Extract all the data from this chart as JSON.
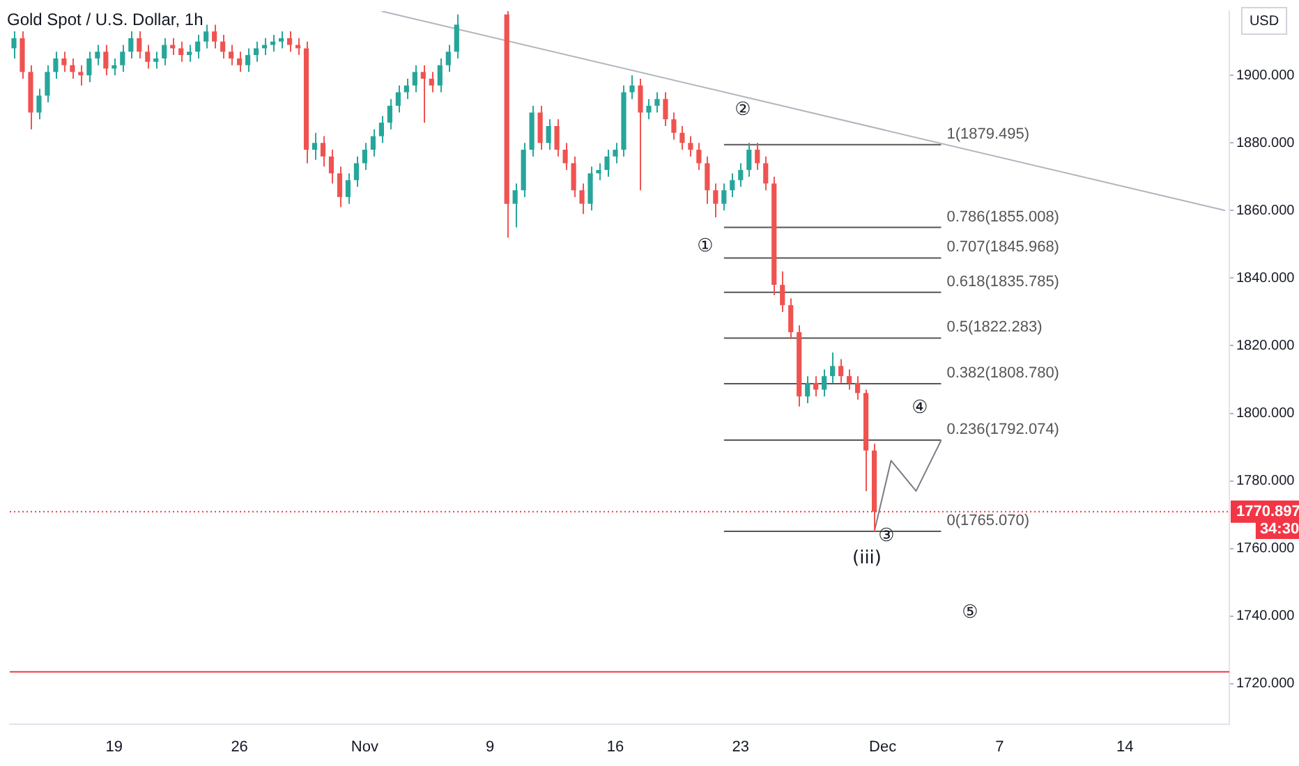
{
  "chart_data": {
    "type": "candlestick",
    "title": "Gold Spot / U.S. Dollar, 1h",
    "categories": [
      null,
      null,
      null,
      null,
      null,
      null,
      null,
      null,
      null,
      null,
      null,
      null,
      "19",
      null,
      null,
      null,
      null,
      null,
      null,
      null,
      null,
      null,
      null,
      null,
      null,
      null,
      null,
      "26",
      null,
      null,
      null,
      null,
      null,
      null,
      null,
      null,
      null,
      null,
      null,
      null,
      null,
      null,
      "Nov",
      null,
      null,
      null,
      null,
      null,
      null,
      null,
      null,
      null,
      null,
      null,
      null,
      null,
      null,
      "9",
      null,
      null,
      null,
      null,
      null,
      null,
      null,
      null,
      null,
      null,
      null,
      null,
      null,
      null,
      "16",
      null,
      null,
      null,
      null,
      null,
      null,
      null,
      null,
      null,
      null,
      null,
      null,
      null,
      null,
      "23",
      null,
      null,
      null,
      null,
      null,
      null,
      null,
      null,
      null,
      null,
      null,
      null,
      null,
      null,
      null,
      null,
      "Dec",
      null,
      null,
      null,
      null,
      null,
      null,
      null,
      null,
      null,
      null,
      null,
      null,
      null,
      "7",
      null,
      null,
      null,
      null,
      null,
      null,
      null,
      null,
      null,
      null,
      null,
      null,
      null,
      null,
      "14",
      null,
      null,
      null,
      null,
      null,
      null,
      null,
      null,
      null,
      null,
      null,
      null
    ],
    "ohlc": [
      [
        1908,
        1913,
        1905,
        1911
      ],
      [
        1911,
        1913,
        1899,
        1901
      ],
      [
        1901,
        1903,
        1884,
        1889
      ],
      [
        1889,
        1896,
        1887,
        1894
      ],
      [
        1894,
        1903,
        1892,
        1901
      ],
      [
        1901,
        1907,
        1899,
        1905
      ],
      [
        1905,
        1907,
        1901,
        1903
      ],
      [
        1903,
        1905,
        1899,
        1901
      ],
      [
        1901,
        1903,
        1897,
        1900
      ],
      [
        1900,
        1907,
        1898,
        1905
      ],
      [
        1905,
        1909,
        1903,
        1907
      ],
      [
        1907,
        1909,
        1900,
        1902
      ],
      [
        1902,
        1905,
        1900,
        1903
      ],
      [
        1903,
        1909,
        1901,
        1907
      ],
      [
        1907,
        1913,
        1905,
        1911
      ],
      [
        1911,
        1913,
        1905,
        1907
      ],
      [
        1907,
        1909,
        1902,
        1904
      ],
      [
        1904,
        1907,
        1902,
        1905
      ],
      [
        1905,
        1911,
        1903,
        1909
      ],
      [
        1909,
        1911,
        1906,
        1908
      ],
      [
        1908,
        1910,
        1904,
        1906
      ],
      [
        1906,
        1909,
        1904,
        1907
      ],
      [
        1907,
        1912,
        1905,
        1910
      ],
      [
        1910,
        1915,
        1908,
        1913
      ],
      [
        1913,
        1915,
        1908,
        1910
      ],
      [
        1910,
        1912,
        1905,
        1907
      ],
      [
        1907,
        1909,
        1903,
        1905
      ],
      [
        1905,
        1907,
        1901,
        1903
      ],
      [
        1903,
        1908,
        1901,
        1906
      ],
      [
        1906,
        1910,
        1904,
        1908
      ],
      [
        1908,
        1911,
        1906,
        1909
      ],
      [
        1909,
        1912,
        1907,
        1910
      ],
      [
        1910,
        1913,
        1908,
        1911
      ],
      [
        1911,
        1913,
        1907,
        1909
      ],
      [
        1909,
        1911,
        1906,
        1908
      ],
      [
        1908,
        1910,
        1874,
        1878
      ],
      [
        1878,
        1883,
        1875,
        1880
      ],
      [
        1880,
        1882,
        1873,
        1876
      ],
      [
        1876,
        1878,
        1868,
        1871
      ],
      [
        1871,
        1873,
        1861,
        1864
      ],
      [
        1864,
        1871,
        1862,
        1869
      ],
      [
        1869,
        1876,
        1867,
        1874
      ],
      [
        1874,
        1880,
        1872,
        1878
      ],
      [
        1878,
        1884,
        1876,
        1882
      ],
      [
        1882,
        1888,
        1880,
        1886
      ],
      [
        1886,
        1893,
        1884,
        1891
      ],
      [
        1891,
        1897,
        1889,
        1895
      ],
      [
        1895,
        1899,
        1893,
        1897
      ],
      [
        1897,
        1903,
        1895,
        1901
      ],
      [
        1901,
        1903,
        1886,
        1899
      ],
      [
        1899,
        1901,
        1895,
        1897
      ],
      [
        1897,
        1905,
        1895,
        1903
      ],
      [
        1903,
        1909,
        1901,
        1907
      ],
      [
        1907,
        1918,
        1905,
        1915
      ],
      null,
      null,
      null,
      null,
      null,
      [
        1918,
        1919,
        1852,
        1862
      ],
      [
        1862,
        1868,
        1855,
        1866
      ],
      [
        1866,
        1880,
        1864,
        1878
      ],
      [
        1878,
        1891,
        1876,
        1889
      ],
      [
        1889,
        1891,
        1878,
        1880
      ],
      [
        1880,
        1887,
        1878,
        1885
      ],
      [
        1885,
        1887,
        1876,
        1878
      ],
      [
        1878,
        1880,
        1872,
        1874
      ],
      [
        1874,
        1876,
        1864,
        1866
      ],
      [
        1866,
        1868,
        1859,
        1862
      ],
      [
        1862,
        1873,
        1860,
        1871
      ],
      [
        1871,
        1874,
        1869,
        1872
      ],
      [
        1872,
        1878,
        1870,
        1876
      ],
      [
        1876,
        1880,
        1874,
        1878
      ],
      [
        1878,
        1897,
        1876,
        1895
      ],
      [
        1895,
        1900,
        1893,
        1897
      ],
      [
        1897,
        1899,
        1866,
        1889
      ],
      [
        1889,
        1893,
        1887,
        1891
      ],
      [
        1891,
        1895,
        1889,
        1893
      ],
      [
        1893,
        1895,
        1885,
        1887
      ],
      [
        1887,
        1889,
        1881,
        1883
      ],
      [
        1883,
        1885,
        1878,
        1880
      ],
      [
        1880,
        1882,
        1876,
        1878
      ],
      [
        1878,
        1880,
        1872,
        1874
      ],
      [
        1874,
        1876,
        1862,
        1866
      ],
      [
        1866,
        1868,
        1858,
        1862
      ],
      [
        1862,
        1868,
        1860,
        1866
      ],
      [
        1866,
        1871,
        1864,
        1869
      ],
      [
        1869,
        1874,
        1867,
        1872
      ],
      [
        1872,
        1880,
        1870,
        1878
      ],
      [
        1878,
        1880,
        1872,
        1874
      ],
      [
        1874,
        1876,
        1866,
        1868
      ],
      [
        1868,
        1870,
        1835,
        1838
      ],
      [
        1838,
        1842,
        1830,
        1832
      ],
      [
        1832,
        1834,
        1822,
        1824
      ],
      [
        1824,
        1826,
        1802,
        1805
      ],
      [
        1805,
        1811,
        1803,
        1809
      ],
      [
        1809,
        1811,
        1805,
        1807
      ],
      [
        1807,
        1813,
        1805,
        1811
      ],
      [
        1811,
        1818,
        1809,
        1814
      ],
      [
        1814,
        1816,
        1809,
        1811
      ],
      [
        1811,
        1813,
        1807,
        1809
      ],
      [
        1809,
        1811,
        1804,
        1806
      ],
      [
        1806,
        1807,
        1777,
        1789
      ],
      [
        1789,
        1791,
        1765,
        1770.897
      ],
      null,
      null,
      null,
      null,
      null,
      null,
      null,
      null,
      null,
      null,
      null,
      null,
      null,
      null,
      null,
      null,
      null,
      null,
      null,
      null,
      null,
      null,
      null,
      null,
      null,
      null,
      null,
      null,
      null,
      null,
      null,
      null,
      null,
      null,
      null,
      null,
      null,
      null,
      null,
      null,
      null,
      null
    ],
    "colors": [
      "#26a69a",
      "#ef5350",
      "#ef5350",
      "#26a69a",
      "#26a69a",
      "#26a69a",
      "#ef5350",
      "#ef5350",
      "#ef5350",
      "#26a69a",
      "#26a69a",
      "#ef5350",
      "#26a69a",
      "#26a69a",
      "#26a69a",
      "#ef5350",
      "#ef5350",
      "#26a69a",
      "#26a69a",
      "#ef5350",
      "#ef5350",
      "#26a69a",
      "#26a69a",
      "#26a69a",
      "#ef5350",
      "#ef5350",
      "#ef5350",
      "#ef5350",
      "#26a69a",
      "#26a69a",
      "#26a69a",
      "#26a69a",
      "#26a69a",
      "#ef5350",
      "#ef5350",
      "#ef5350",
      "#26a69a",
      "#ef5350",
      "#ef5350",
      "#ef5350",
      "#26a69a",
      "#26a69a",
      "#26a69a",
      "#26a69a",
      "#26a69a",
      "#26a69a",
      "#26a69a",
      "#26a69a",
      "#26a69a",
      "#ef5350",
      "#ef5350",
      "#26a69a",
      "#26a69a",
      "#26a69a",
      null,
      null,
      null,
      null,
      null,
      "#ef5350",
      "#26a69a",
      "#26a69a",
      "#26a69a",
      "#ef5350",
      "#26a69a",
      "#ef5350",
      "#ef5350",
      "#ef5350",
      "#ef5350",
      "#26a69a",
      "#26a69a",
      "#26a69a",
      "#26a69a",
      "#26a69a",
      "#26a69a",
      "#ef5350",
      "#26a69a",
      "#26a69a",
      "#ef5350",
      "#ef5350",
      "#ef5350",
      "#ef5350",
      "#ef5350",
      "#ef5350",
      "#ef5350",
      "#26a69a",
      "#26a69a",
      "#26a69a",
      "#26a69a",
      "#ef5350",
      "#ef5350",
      "#ef5350",
      "#ef5350",
      "#ef5350",
      "#ef5350",
      "#26a69a",
      "#ef5350",
      "#26a69a",
      "#26a69a",
      "#ef5350",
      "#ef5350",
      "#ef5350",
      "#ef5350",
      "#ef5350",
      null,
      null,
      null,
      null,
      null,
      null,
      null,
      null,
      null,
      null,
      null,
      null,
      null,
      null,
      null,
      null,
      null,
      null,
      null,
      null,
      null,
      null,
      null,
      null,
      null,
      null,
      null,
      null,
      null,
      null,
      null,
      null,
      null,
      null,
      null,
      null,
      null,
      null,
      null,
      null,
      null,
      null
    ],
    "ylim": [
      1708,
      1919
    ],
    "yticks": [
      {
        "value": 1720,
        "label": "1720.000"
      },
      {
        "value": 1740,
        "label": "1740.000"
      },
      {
        "value": 1760,
        "label": "1760.000"
      },
      {
        "value": 1780,
        "label": "1780.000"
      },
      {
        "value": 1800,
        "label": "1800.000"
      },
      {
        "value": 1820,
        "label": "1820.000"
      },
      {
        "value": 1840,
        "label": "1840.000"
      },
      {
        "value": 1860,
        "label": "1860.000"
      },
      {
        "value": 1880,
        "label": "1880.000"
      },
      {
        "value": 1900,
        "label": "1900.000"
      }
    ],
    "series": [
      {
        "type": "line",
        "color": "#b2b5be",
        "values": [
          null,
          null,
          null,
          null,
          null,
          null,
          null,
          null,
          null,
          null,
          null,
          null,
          null,
          null,
          null,
          null,
          null,
          null,
          null,
          null,
          null,
          null,
          null,
          null,
          null,
          null,
          null,
          null,
          null,
          null,
          null,
          null,
          null,
          null,
          null,
          null,
          null,
          null,
          null,
          null,
          null,
          null,
          null,
          null,
          1919,
          null,
          null,
          null,
          null,
          null,
          null,
          null,
          null,
          null,
          null,
          null,
          null,
          null,
          null,
          null,
          null,
          null,
          null,
          null,
          null,
          null,
          null,
          null,
          null,
          null,
          null,
          null,
          null,
          null,
          null,
          null,
          null,
          null,
          null,
          null,
          null,
          null,
          null,
          null,
          null,
          null,
          null,
          null,
          null,
          null,
          null,
          null,
          null,
          null,
          null,
          null,
          null,
          null,
          null,
          null,
          null,
          null,
          null,
          null,
          null,
          null,
          null,
          null,
          null,
          null,
          null,
          null,
          null,
          null,
          null,
          null,
          null,
          null,
          null,
          null,
          null,
          null,
          null,
          null,
          null,
          null,
          null,
          null,
          null,
          null,
          null,
          null,
          null,
          null,
          null,
          null,
          null,
          null,
          null,
          null,
          null,
          null,
          null,
          null,
          null,
          1860
        ]
      },
      {
        "type": "line",
        "color": "#787b86",
        "values": [
          null,
          null,
          null,
          null,
          null,
          null,
          null,
          null,
          null,
          null,
          null,
          null,
          null,
          null,
          null,
          null,
          null,
          null,
          null,
          null,
          null,
          null,
          null,
          null,
          null,
          null,
          null,
          null,
          null,
          null,
          null,
          null,
          null,
          null,
          null,
          null,
          null,
          null,
          null,
          null,
          null,
          null,
          null,
          null,
          null,
          null,
          null,
          null,
          null,
          null,
          null,
          null,
          null,
          null,
          null,
          null,
          null,
          null,
          null,
          null,
          null,
          null,
          null,
          null,
          null,
          null,
          null,
          null,
          null,
          null,
          null,
          null,
          null,
          null,
          null,
          null,
          null,
          null,
          null,
          null,
          null,
          null,
          null,
          null,
          null,
          null,
          null,
          null,
          null,
          null,
          null,
          null,
          null,
          null,
          null,
          null,
          null,
          null,
          null,
          null,
          null,
          null,
          null,
          1765,
          null,
          1786,
          null,
          null,
          1777,
          null,
          null,
          1792,
          null,
          null,
          null,
          null,
          null,
          null,
          null,
          null,
          null,
          null,
          null,
          null,
          null,
          null,
          null,
          null,
          null,
          null,
          null,
          null,
          null,
          null,
          null,
          null,
          null,
          null,
          null,
          null,
          null,
          null,
          null,
          null,
          null,
          null
        ]
      },
      {
        "type": "line",
        "name": "1(1879.495)",
        "color": "#555555",
        "values": [
          null,
          null,
          null,
          null,
          null,
          null,
          null,
          null,
          null,
          null,
          null,
          null,
          null,
          null,
          null,
          null,
          null,
          null,
          null,
          null,
          null,
          null,
          null,
          null,
          null,
          null,
          null,
          null,
          null,
          null,
          null,
          null,
          null,
          null,
          null,
          null,
          null,
          null,
          null,
          null,
          null,
          null,
          null,
          null,
          null,
          null,
          null,
          null,
          null,
          null,
          null,
          null,
          null,
          null,
          null,
          null,
          null,
          null,
          null,
          null,
          null,
          null,
          null,
          null,
          null,
          null,
          null,
          null,
          null,
          null,
          null,
          null,
          null,
          null,
          null,
          null,
          null,
          null,
          null,
          null,
          null,
          null,
          null,
          null,
          null,
          1879.495,
          1879.495,
          1879.495,
          1879.495,
          1879.495,
          1879.495,
          1879.495,
          1879.495,
          1879.495,
          1879.495,
          1879.495,
          1879.495,
          1879.495,
          1879.495,
          1879.495,
          1879.495,
          1879.495,
          1879.495,
          1879.495,
          1879.495,
          1879.495,
          1879.495,
          1879.495,
          1879.495,
          1879.495,
          1879.495,
          1879.495,
          null,
          null,
          null,
          null,
          null,
          null,
          null,
          null,
          null,
          null,
          null,
          null,
          null,
          null,
          null,
          null,
          null,
          null,
          null,
          null,
          null,
          null,
          null,
          null,
          null,
          null,
          null,
          null,
          null,
          null,
          null,
          null,
          null,
          null
        ]
      },
      {
        "type": "line",
        "name": "0.786(1855.008)",
        "color": "#555555",
        "values": [
          null,
          null,
          null,
          null,
          null,
          null,
          null,
          null,
          null,
          null,
          null,
          null,
          null,
          null,
          null,
          null,
          null,
          null,
          null,
          null,
          null,
          null,
          null,
          null,
          null,
          null,
          null,
          null,
          null,
          null,
          null,
          null,
          null,
          null,
          null,
          null,
          null,
          null,
          null,
          null,
          null,
          null,
          null,
          null,
          null,
          null,
          null,
          null,
          null,
          null,
          null,
          null,
          null,
          null,
          null,
          null,
          null,
          null,
          null,
          null,
          null,
          null,
          null,
          null,
          null,
          null,
          null,
          null,
          null,
          null,
          null,
          null,
          null,
          null,
          null,
          null,
          null,
          null,
          null,
          null,
          null,
          null,
          null,
          null,
          null,
          1855.008,
          1855.008,
          1855.008,
          1855.008,
          1855.008,
          1855.008,
          1855.008,
          1855.008,
          1855.008,
          1855.008,
          1855.008,
          1855.008,
          1855.008,
          1855.008,
          1855.008,
          1855.008,
          1855.008,
          1855.008,
          1855.008,
          1855.008,
          1855.008,
          1855.008,
          1855.008,
          1855.008,
          1855.008,
          1855.008,
          1855.008,
          null,
          null,
          null,
          null,
          null,
          null,
          null,
          null,
          null,
          null,
          null,
          null,
          null,
          null,
          null,
          null,
          null,
          null,
          null,
          null,
          null,
          null,
          null,
          null,
          null,
          null,
          null,
          null,
          null,
          null,
          null,
          null,
          null,
          null
        ]
      },
      {
        "type": "line",
        "name": "0.707(1845.968)",
        "color": "#555555",
        "values": [
          null,
          null,
          null,
          null,
          null,
          null,
          null,
          null,
          null,
          null,
          null,
          null,
          null,
          null,
          null,
          null,
          null,
          null,
          null,
          null,
          null,
          null,
          null,
          null,
          null,
          null,
          null,
          null,
          null,
          null,
          null,
          null,
          null,
          null,
          null,
          null,
          null,
          null,
          null,
          null,
          null,
          null,
          null,
          null,
          null,
          null,
          null,
          null,
          null,
          null,
          null,
          null,
          null,
          null,
          null,
          null,
          null,
          null,
          null,
          null,
          null,
          null,
          null,
          null,
          null,
          null,
          null,
          null,
          null,
          null,
          null,
          null,
          null,
          null,
          null,
          null,
          null,
          null,
          null,
          null,
          null,
          null,
          null,
          null,
          null,
          1845.968,
          1845.968,
          1845.968,
          1845.968,
          1845.968,
          1845.968,
          1845.968,
          1845.968,
          1845.968,
          1845.968,
          1845.968,
          1845.968,
          1845.968,
          1845.968,
          1845.968,
          1845.968,
          1845.968,
          1845.968,
          1845.968,
          1845.968,
          1845.968,
          1845.968,
          1845.968,
          1845.968,
          1845.968,
          1845.968,
          1845.968,
          null,
          null,
          null,
          null,
          null,
          null,
          null,
          null,
          null,
          null,
          null,
          null,
          null,
          null,
          null,
          null,
          null,
          null,
          null,
          null,
          null,
          null,
          null,
          null,
          null,
          null,
          null,
          null,
          null,
          null,
          null,
          null,
          null,
          null
        ]
      },
      {
        "type": "line",
        "name": "0.618(1835.785)",
        "color": "#555555",
        "values": [
          null,
          null,
          null,
          null,
          null,
          null,
          null,
          null,
          null,
          null,
          null,
          null,
          null,
          null,
          null,
          null,
          null,
          null,
          null,
          null,
          null,
          null,
          null,
          null,
          null,
          null,
          null,
          null,
          null,
          null,
          null,
          null,
          null,
          null,
          null,
          null,
          null,
          null,
          null,
          null,
          null,
          null,
          null,
          null,
          null,
          null,
          null,
          null,
          null,
          null,
          null,
          null,
          null,
          null,
          null,
          null,
          null,
          null,
          null,
          null,
          null,
          null,
          null,
          null,
          null,
          null,
          null,
          null,
          null,
          null,
          null,
          null,
          null,
          null,
          null,
          null,
          null,
          null,
          null,
          null,
          null,
          null,
          null,
          null,
          null,
          1835.785,
          1835.785,
          1835.785,
          1835.785,
          1835.785,
          1835.785,
          1835.785,
          1835.785,
          1835.785,
          1835.785,
          1835.785,
          1835.785,
          1835.785,
          1835.785,
          1835.785,
          1835.785,
          1835.785,
          1835.785,
          1835.785,
          1835.785,
          1835.785,
          1835.785,
          1835.785,
          1835.785,
          1835.785,
          1835.785,
          1835.785,
          null,
          null,
          null,
          null,
          null,
          null,
          null,
          null,
          null,
          null,
          null,
          null,
          null,
          null,
          null,
          null,
          null,
          null,
          null,
          null,
          null,
          null,
          null,
          null,
          null,
          null,
          null,
          null,
          null,
          null,
          null,
          null,
          null,
          null
        ]
      },
      {
        "type": "line",
        "name": "0.5(1822.283)",
        "color": "#555555",
        "values": [
          null,
          null,
          null,
          null,
          null,
          null,
          null,
          null,
          null,
          null,
          null,
          null,
          null,
          null,
          null,
          null,
          null,
          null,
          null,
          null,
          null,
          null,
          null,
          null,
          null,
          null,
          null,
          null,
          null,
          null,
          null,
          null,
          null,
          null,
          null,
          null,
          null,
          null,
          null,
          null,
          null,
          null,
          null,
          null,
          null,
          null,
          null,
          null,
          null,
          null,
          null,
          null,
          null,
          null,
          null,
          null,
          null,
          null,
          null,
          null,
          null,
          null,
          null,
          null,
          null,
          null,
          null,
          null,
          null,
          null,
          null,
          null,
          null,
          null,
          null,
          null,
          null,
          null,
          null,
          null,
          null,
          null,
          null,
          null,
          null,
          1822.283,
          1822.283,
          1822.283,
          1822.283,
          1822.283,
          1822.283,
          1822.283,
          1822.283,
          1822.283,
          1822.283,
          1822.283,
          1822.283,
          1822.283,
          1822.283,
          1822.283,
          1822.283,
          1822.283,
          1822.283,
          1822.283,
          1822.283,
          1822.283,
          1822.283,
          1822.283,
          1822.283,
          1822.283,
          1822.283,
          1822.283,
          null,
          null,
          null,
          null,
          null,
          null,
          null,
          null,
          null,
          null,
          null,
          null,
          null,
          null,
          null,
          null,
          null,
          null,
          null,
          null,
          null,
          null,
          null,
          null,
          null,
          null,
          null,
          null,
          null,
          null,
          null,
          null,
          null,
          null
        ]
      },
      {
        "type": "line",
        "name": "0.382(1808.780)",
        "color": "#555555",
        "values": [
          null,
          null,
          null,
          null,
          null,
          null,
          null,
          null,
          null,
          null,
          null,
          null,
          null,
          null,
          null,
          null,
          null,
          null,
          null,
          null,
          null,
          null,
          null,
          null,
          null,
          null,
          null,
          null,
          null,
          null,
          null,
          null,
          null,
          null,
          null,
          null,
          null,
          null,
          null,
          null,
          null,
          null,
          null,
          null,
          null,
          null,
          null,
          null,
          null,
          null,
          null,
          null,
          null,
          null,
          null,
          null,
          null,
          null,
          null,
          null,
          null,
          null,
          null,
          null,
          null,
          null,
          null,
          null,
          null,
          null,
          null,
          null,
          null,
          null,
          null,
          null,
          null,
          null,
          null,
          null,
          null,
          null,
          null,
          null,
          null,
          1808.78,
          1808.78,
          1808.78,
          1808.78,
          1808.78,
          1808.78,
          1808.78,
          1808.78,
          1808.78,
          1808.78,
          1808.78,
          1808.78,
          1808.78,
          1808.78,
          1808.78,
          1808.78,
          1808.78,
          1808.78,
          1808.78,
          1808.78,
          1808.78,
          1808.78,
          1808.78,
          1808.78,
          1808.78,
          1808.78,
          1808.78,
          null,
          null,
          null,
          null,
          null,
          null,
          null,
          null,
          null,
          null,
          null,
          null,
          null,
          null,
          null,
          null,
          null,
          null,
          null,
          null,
          null,
          null,
          null,
          null,
          null,
          null,
          null,
          null,
          null,
          null,
          null,
          null,
          null,
          null
        ]
      },
      {
        "type": "line",
        "name": "0.236(1792.074)",
        "color": "#555555",
        "values": [
          null,
          null,
          null,
          null,
          null,
          null,
          null,
          null,
          null,
          null,
          null,
          null,
          null,
          null,
          null,
          null,
          null,
          null,
          null,
          null,
          null,
          null,
          null,
          null,
          null,
          null,
          null,
          null,
          null,
          null,
          null,
          null,
          null,
          null,
          null,
          null,
          null,
          null,
          null,
          null,
          null,
          null,
          null,
          null,
          null,
          null,
          null,
          null,
          null,
          null,
          null,
          null,
          null,
          null,
          null,
          null,
          null,
          null,
          null,
          null,
          null,
          null,
          null,
          null,
          null,
          null,
          null,
          null,
          null,
          null,
          null,
          null,
          null,
          null,
          null,
          null,
          null,
          null,
          null,
          null,
          null,
          null,
          null,
          null,
          null,
          1792.074,
          1792.074,
          1792.074,
          1792.074,
          1792.074,
          1792.074,
          1792.074,
          1792.074,
          1792.074,
          1792.074,
          1792.074,
          1792.074,
          1792.074,
          1792.074,
          1792.074,
          1792.074,
          1792.074,
          1792.074,
          1792.074,
          1792.074,
          1792.074,
          1792.074,
          1792.074,
          1792.074,
          1792.074,
          1792.074,
          1792.074,
          null,
          null,
          null,
          null,
          null,
          null,
          null,
          null,
          null,
          null,
          null,
          null,
          null,
          null,
          null,
          null,
          null,
          null,
          null,
          null,
          null,
          null,
          null,
          null,
          null,
          null,
          null,
          null,
          null,
          null,
          null,
          null,
          null,
          null
        ]
      },
      {
        "type": "line",
        "name": "0(1765.070)",
        "color": "#555555",
        "values": [
          null,
          null,
          null,
          null,
          null,
          null,
          null,
          null,
          null,
          null,
          null,
          null,
          null,
          null,
          null,
          null,
          null,
          null,
          null,
          null,
          null,
          null,
          null,
          null,
          null,
          null,
          null,
          null,
          null,
          null,
          null,
          null,
          null,
          null,
          null,
          null,
          null,
          null,
          null,
          null,
          null,
          null,
          null,
          null,
          null,
          null,
          null,
          null,
          null,
          null,
          null,
          null,
          null,
          null,
          null,
          null,
          null,
          null,
          null,
          null,
          null,
          null,
          null,
          null,
          null,
          null,
          null,
          null,
          null,
          null,
          null,
          null,
          null,
          null,
          null,
          null,
          null,
          null,
          null,
          null,
          null,
          null,
          null,
          null,
          null,
          1765.07,
          1765.07,
          1765.07,
          1765.07,
          1765.07,
          1765.07,
          1765.07,
          1765.07,
          1765.07,
          1765.07,
          1765.07,
          1765.07,
          1765.07,
          1765.07,
          1765.07,
          1765.07,
          1765.07,
          1765.07,
          1765.07,
          1765.07,
          1765.07,
          1765.07,
          1765.07,
          1765.07,
          1765.07,
          1765.07,
          1765.07,
          null,
          null,
          null,
          null,
          null,
          null,
          null,
          null,
          null,
          null,
          null,
          null,
          null,
          null,
          null,
          null,
          null,
          null,
          null,
          null,
          null,
          null,
          null,
          null,
          null,
          null,
          null,
          null,
          null,
          null,
          null,
          null,
          null,
          null
        ]
      }
    ],
    "ref_lines": [
      {
        "axis": "y",
        "value": 1723.5,
        "color": "#f23645"
      },
      {
        "axis": "y",
        "value": 1770.897,
        "label": "1770.897",
        "color": "#f23645",
        "line_style": "dotted"
      }
    ],
    "annotations": [
      "①",
      "②",
      "③",
      "④",
      "⑤",
      "(iii)",
      "USD",
      "34:30"
    ]
  }
}
